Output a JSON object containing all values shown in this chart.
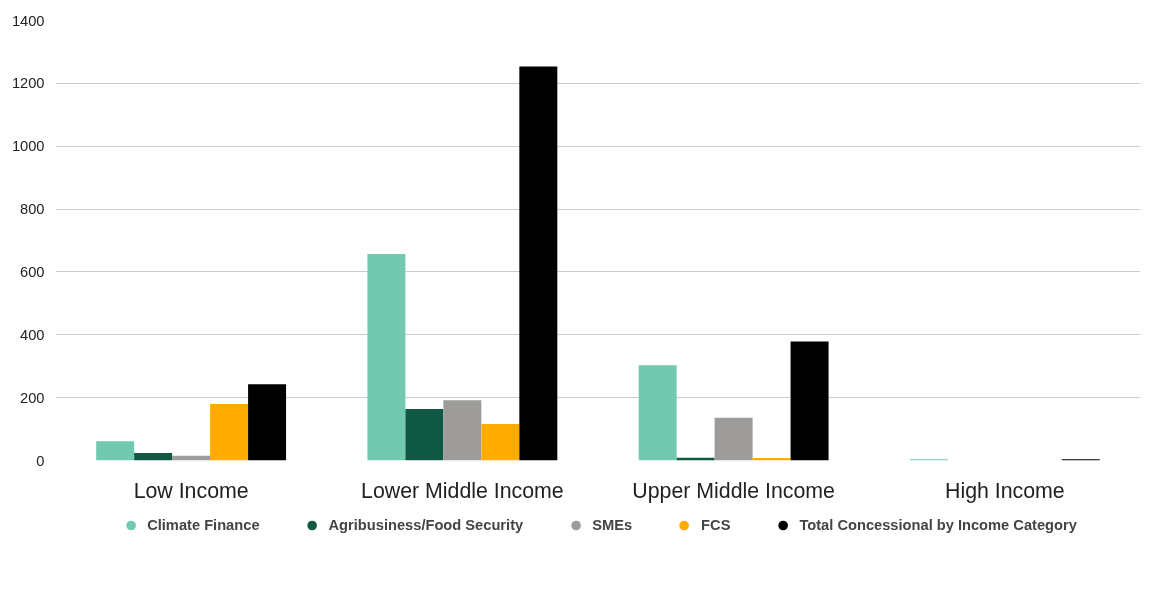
{
  "chart_data": {
    "type": "bar",
    "categories": [
      "Low Income",
      "Lower Middle Income",
      "Upper Middle Income",
      "High Income"
    ],
    "series": [
      {
        "name": "Climate Finance",
        "color": "#71c9b0",
        "values": [
          61,
          657,
          303,
          4
        ]
      },
      {
        "name": "Agribusiness/Food Security",
        "color": "#0f5944",
        "values": [
          24,
          164,
          9,
          0
        ]
      },
      {
        "name": "SMEs",
        "color": "#9d9c9a",
        "values": [
          15,
          192,
          136,
          0
        ]
      },
      {
        "name": "FCS",
        "color": "#ffab00",
        "values": [
          180,
          116,
          8,
          0
        ]
      },
      {
        "name": "Total Concessional by Income Category",
        "color": "#000000",
        "values": [
          243,
          1254,
          379,
          4
        ]
      }
    ],
    "ylim": [
      0,
      1400
    ],
    "yticks": [
      0,
      200,
      400,
      600,
      800,
      1000,
      1200,
      1400
    ],
    "grid": "y",
    "legend": "bottom"
  }
}
